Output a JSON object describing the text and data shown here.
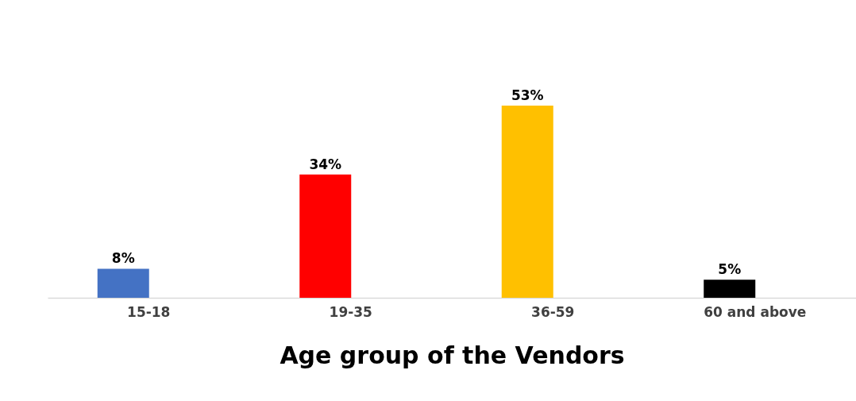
{
  "chart_data": {
    "type": "bar",
    "xlabel": "Age group of the Vendors",
    "categories": [
      "15-18",
      "19-35",
      "36-59",
      "60 and above"
    ],
    "values": [
      8,
      34,
      53,
      5
    ],
    "colors": [
      "#4472c4",
      "#ff0000",
      "#ffc000",
      "#000000"
    ],
    "value_labels": [
      "8%",
      "34%",
      "53%",
      "5%"
    ]
  }
}
